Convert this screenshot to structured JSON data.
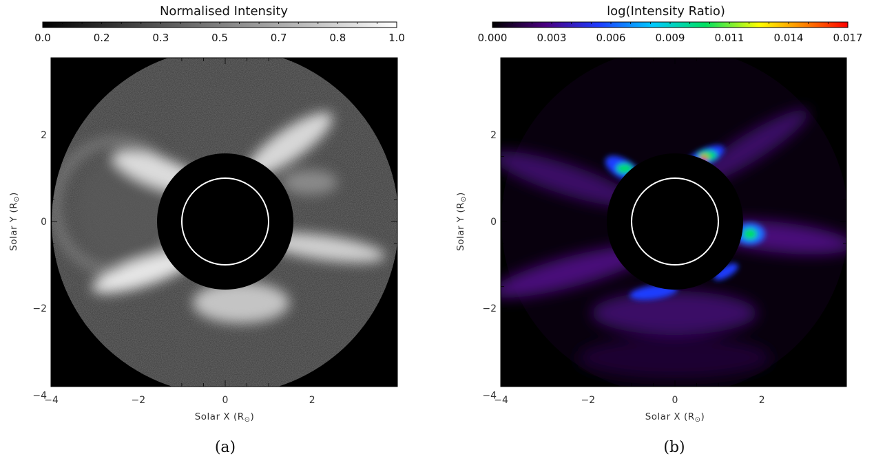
{
  "panels": [
    {
      "id": "a",
      "colorbar": {
        "title": "Normalised Intensity",
        "colormap": "grayscale",
        "tick_labels": [
          "0.0",
          "0.2",
          "0.3",
          "0.5",
          "0.7",
          "0.8",
          "1.0"
        ]
      },
      "x_axis": {
        "label_main": "Solar X (R",
        "label_close": ")",
        "ticks": [
          {
            "value": -4,
            "label": "−4"
          },
          {
            "value": -2,
            "label": "−2"
          },
          {
            "value": 0,
            "label": "0"
          },
          {
            "value": 2,
            "label": "2"
          }
        ]
      },
      "y_axis": {
        "label_main": "Solar Y (R",
        "label_close": ")",
        "ticks": [
          {
            "value": -4,
            "label": "−4"
          },
          {
            "value": -2,
            "label": "−2"
          },
          {
            "value": 0,
            "label": "0"
          },
          {
            "value": 2,
            "label": "2"
          }
        ]
      },
      "occulter_radius_rsun": 1.6,
      "limb_radius_rsun": 1.05,
      "caption": "(a)"
    },
    {
      "id": "b",
      "colorbar": {
        "title": "log(Intensity Ratio)",
        "colormap": "rainbow",
        "tick_labels": [
          "0.000",
          "0.003",
          "0.006",
          "0.009",
          "0.011",
          "0.014",
          "0.017"
        ]
      },
      "x_axis": {
        "label_main": "Solar X (R",
        "label_close": ")",
        "ticks": [
          {
            "value": -4,
            "label": "−4"
          },
          {
            "value": -2,
            "label": "−2"
          },
          {
            "value": 0,
            "label": "0"
          },
          {
            "value": 2,
            "label": "2"
          }
        ]
      },
      "y_axis": {
        "label_main": "Solar Y (R",
        "label_close": ")",
        "ticks": [
          {
            "value": -4,
            "label": "−4"
          },
          {
            "value": -2,
            "label": "−2"
          },
          {
            "value": 0,
            "label": "0"
          },
          {
            "value": 2,
            "label": "2"
          }
        ]
      },
      "occulter_radius_rsun": 1.6,
      "limb_radius_rsun": 1.05,
      "caption": "(b)"
    }
  ],
  "colors": {
    "image_background": "#000000",
    "limb_circle": "#ffffff",
    "rainbow_stops": [
      "#000000",
      "#4b0082",
      "#1e3cff",
      "#00c8ff",
      "#00e060",
      "#ffff00",
      "#ff8000",
      "#ff0000"
    ]
  }
}
